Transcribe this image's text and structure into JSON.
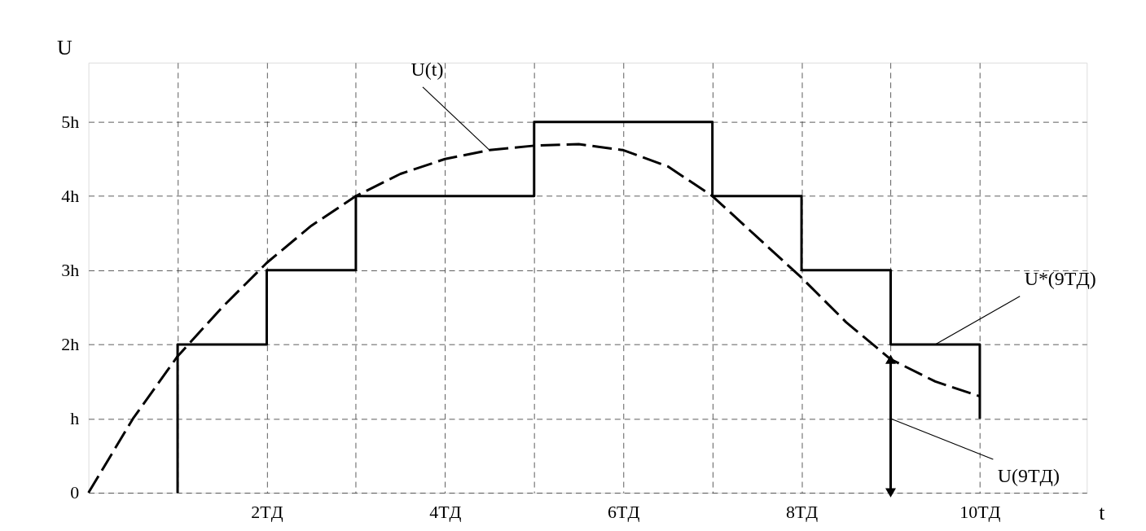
{
  "chart_data": {
    "type": "line",
    "xlabel": "t",
    "ylabel": "U",
    "xlim": [
      0,
      11.2
    ],
    "ylim": [
      0,
      5.8
    ],
    "xticks": [
      {
        "value": 1,
        "label": null
      },
      {
        "value": 2,
        "label": "2TД"
      },
      {
        "value": 3,
        "label": null
      },
      {
        "value": 4,
        "label": "4TД"
      },
      {
        "value": 5,
        "label": null
      },
      {
        "value": 6,
        "label": "6TД"
      },
      {
        "value": 7,
        "label": null
      },
      {
        "value": 8,
        "label": "8TД"
      },
      {
        "value": 9,
        "label": null
      },
      {
        "value": 10,
        "label": "10TД"
      }
    ],
    "yticks": [
      {
        "value": 0,
        "label": "0"
      },
      {
        "value": 1,
        "label": "h"
      },
      {
        "value": 2,
        "label": "2h"
      },
      {
        "value": 3,
        "label": "3h"
      },
      {
        "value": 4,
        "label": "4h"
      },
      {
        "value": 5,
        "label": "5h"
      }
    ],
    "grid": true,
    "marker": "none",
    "series": [
      {
        "color": "#000000",
        "line_style": "dashed",
        "x": [
          0,
          0.5,
          1,
          1.5,
          2,
          2.5,
          3,
          3.5,
          4,
          4.5,
          5,
          5.5,
          6,
          6.5,
          7,
          7.5,
          8,
          8.5,
          9,
          9.5,
          10
        ],
        "values": [
          0,
          1.0,
          1.84,
          2.5,
          3.1,
          3.6,
          4.0,
          4.3,
          4.5,
          4.62,
          4.68,
          4.7,
          4.62,
          4.4,
          4.0,
          3.45,
          2.9,
          2.3,
          1.8,
          1.5,
          1.3
        ]
      },
      {
        "color": "#000000",
        "line_style": "solid",
        "x": [
          1,
          1,
          2,
          2,
          3,
          3,
          5,
          5,
          7,
          7,
          8,
          8,
          9,
          9,
          10,
          10
        ],
        "values": [
          0,
          2,
          2,
          3,
          3,
          4,
          4,
          5,
          5,
          4,
          4,
          3,
          3,
          2,
          2,
          1
        ]
      },
      {
        "color": "#000000",
        "line_style": "solid",
        "marker": "triangle",
        "x": [
          9,
          9
        ],
        "values": [
          0,
          1.8
        ]
      }
    ],
    "annotations": [
      {
        "text": "U(t)",
        "x": 4.5,
        "y": 4.62
      },
      {
        "text": "U*(9TД)",
        "x": 9.5,
        "y": 2
      },
      {
        "text": "U(9TД)",
        "x": 9,
        "y": 1.0
      }
    ]
  }
}
